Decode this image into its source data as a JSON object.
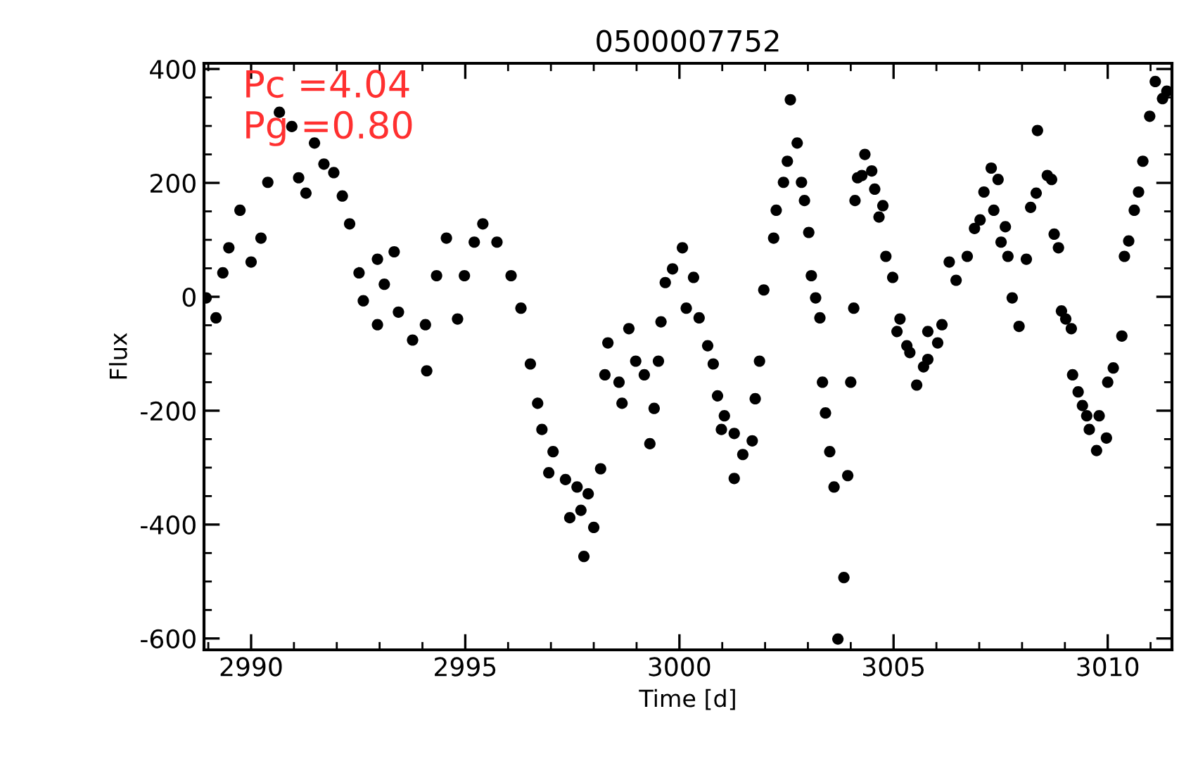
{
  "chart_data": {
    "type": "scatter",
    "title": "0500007752",
    "xlabel": "Time [d]",
    "ylabel": "Flux",
    "annotations": [
      "Pc =4.04",
      "Pg =0.80"
    ],
    "xlim": [
      2988.9,
      3011.5
    ],
    "xticks": [
      2990,
      2995,
      3000,
      3005,
      3010
    ],
    "ylim": [
      -620,
      410
    ],
    "yticks": [
      -600,
      -400,
      -200,
      0,
      200,
      400
    ],
    "grid": false,
    "marker": "circle",
    "series": [
      {
        "color": "#000000",
        "x": [
          2990.39,
          2989.74,
          2989.48,
          2989.34,
          2988.95,
          2989.18,
          2990.0,
          2990.23,
          2990.66,
          2990.95,
          2991.11,
          2991.28,
          2991.48,
          2991.7,
          2991.93,
          2992.13,
          2992.3,
          2992.52,
          2992.95,
          2993.34,
          2992.62,
          2993.11,
          2992.95,
          2993.44,
          2993.77,
          2994.1,
          2994.07,
          2994.33,
          2994.56,
          2994.82,
          2994.98,
          2995.41,
          2995.21,
          2995.74,
          2996.07,
          2996.3,
          2996.52,
          2996.69,
          2996.79,
          2997.05,
          2996.95,
          2997.34,
          2997.61,
          2997.87,
          2997.44,
          2997.7,
          2998.0,
          2997.77,
          2998.16,
          2998.33,
          2998.26,
          2998.59,
          2998.66,
          2998.82,
          2998.98,
          2999.18,
          2999.41,
          2999.31,
          2999.51,
          2999.57,
          2999.67,
          2999.84,
          3000.07,
          3000.33,
          3000.16,
          3000.46,
          3000.66,
          3000.79,
          3000.89,
          3001.05,
          3000.98,
          3001.28,
          3001.48,
          3001.28,
          3001.7,
          3001.77,
          3001.87,
          3001.97,
          3002.2,
          3002.26,
          3002.43,
          3002.52,
          3002.75,
          3002.59,
          3002.85,
          3002.92,
          3003.02,
          3003.08,
          3003.18,
          3003.28,
          3003.34,
          3003.41,
          3003.51,
          3003.61,
          3003.84,
          3003.7,
          3003.93,
          3004.0,
          3004.07,
          3004.1,
          3004.16,
          3004.33,
          3004.26,
          3004.49,
          3004.56,
          3004.75,
          3004.66,
          3004.82,
          3004.98,
          3005.15,
          3005.08,
          3005.31,
          3005.38,
          3005.54,
          3005.7,
          3005.8,
          3005.8,
          3006.03,
          3006.13,
          3006.3,
          3006.46,
          3006.72,
          3006.89,
          3007.02,
          3007.11,
          3007.28,
          3007.44,
          3007.34,
          3007.61,
          3007.51,
          3007.67,
          3007.77,
          3007.93,
          3008.1,
          3008.2,
          3008.33,
          3008.36,
          3008.59,
          3008.69,
          3008.75,
          3008.85,
          3008.92,
          3009.02,
          3009.15,
          3009.18,
          3009.31,
          3009.41,
          3009.51,
          3009.8,
          3009.57,
          3009.74,
          3009.97,
          3010.0,
          3010.13,
          3010.33,
          3010.39,
          3010.49,
          3010.62,
          3010.72,
          3010.82,
          3010.98,
          3011.11,
          3011.28,
          3011.38
        ],
        "values": [
          201,
          152,
          86,
          42,
          -2,
          -37,
          61,
          103,
          324,
          299,
          209,
          182,
          270,
          233,
          218,
          177,
          128,
          42,
          66,
          79,
          -7,
          22,
          -49,
          -27,
          -76,
          -130,
          -49,
          37,
          103,
          -39,
          37,
          128,
          96,
          96,
          37,
          -20,
          -118,
          -187,
          -233,
          -272,
          -309,
          -321,
          -334,
          -346,
          -388,
          -375,
          -405,
          -456,
          -302,
          -81,
          -137,
          -150,
          -187,
          -56,
          -113,
          -137,
          -196,
          -258,
          -113,
          -44,
          25,
          49,
          86,
          34,
          -20,
          -37,
          -86,
          -118,
          -174,
          -209,
          -233,
          -240,
          -277,
          -319,
          -253,
          -179,
          -113,
          12,
          103,
          152,
          201,
          238,
          270,
          346,
          201,
          169,
          113,
          37,
          -2,
          -37,
          -150,
          -204,
          -272,
          -334,
          -493,
          -601,
          -314,
          -150,
          -20,
          169,
          209,
          250,
          213,
          221,
          189,
          160,
          140,
          71,
          34,
          -39,
          -61,
          -86,
          -98,
          -155,
          -123,
          -110,
          -61,
          -81,
          -49,
          61,
          29,
          71,
          120,
          135,
          184,
          226,
          206,
          152,
          123,
          96,
          71,
          -2,
          -52,
          66,
          157,
          182,
          292,
          213,
          206,
          110,
          86,
          -25,
          -39,
          -56,
          -137,
          -167,
          -191,
          -209,
          -209,
          -233,
          -270,
          -248,
          -150,
          -125,
          -69,
          71,
          98,
          152,
          184,
          238,
          317,
          378,
          348,
          361
        ]
      }
    ]
  }
}
